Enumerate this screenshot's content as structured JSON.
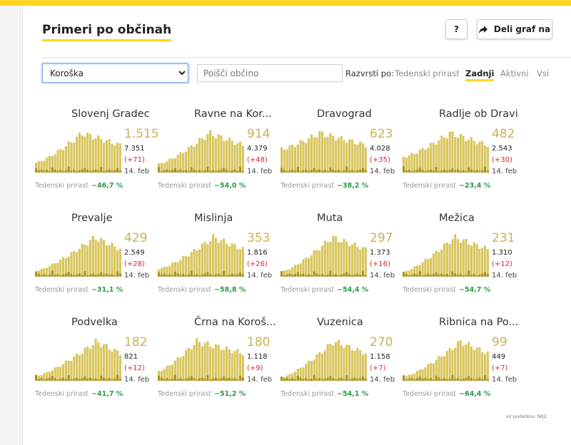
{
  "title": "Primeri po občinah",
  "help_label": "?",
  "share_label": "Deli graf na",
  "region_selected": "Koroška",
  "search_placeholder": "Poišči občino",
  "sort_label": "Razvrsti po:",
  "sort_options": [
    {
      "label": "Tedenski prirast",
      "active": false
    },
    {
      "label": "Zadnji",
      "active": true
    },
    {
      "label": "Aktivni",
      "active": false
    },
    {
      "label": "Vsi",
      "active": false
    }
  ],
  "trend_label": "Tedenski prirast",
  "date": "14. feb",
  "colors": {
    "bar": "#d8c55c",
    "bar_low": "#a89020",
    "accent": "#ffd423",
    "increase": "#d23",
    "trend": "#2a9b4a"
  },
  "municipalities": [
    {
      "name": "Slovenj Gradec",
      "active": "1.515",
      "total": "7.351",
      "delta": "(+71)",
      "weekly": "−46,7 %"
    },
    {
      "name": "Ravne na Kor...",
      "active": "914",
      "total": "4.379",
      "delta": "(+48)",
      "weekly": "−54,0 %"
    },
    {
      "name": "Dravograd",
      "active": "623",
      "total": "4.028",
      "delta": "(+35)",
      "weekly": "−38,2 %"
    },
    {
      "name": "Radlje ob Dravi",
      "active": "482",
      "total": "2.543",
      "delta": "(+30)",
      "weekly": "−23,4 %"
    },
    {
      "name": "Prevalje",
      "active": "429",
      "total": "2.549",
      "delta": "(+28)",
      "weekly": "−31,1 %"
    },
    {
      "name": "Mislinja",
      "active": "353",
      "total": "1.816",
      "delta": "(+26)",
      "weekly": "−58,8 %"
    },
    {
      "name": "Muta",
      "active": "297",
      "total": "1.373",
      "delta": "(+16)",
      "weekly": "−54,4 %"
    },
    {
      "name": "Mežica",
      "active": "231",
      "total": "1.310",
      "delta": "(+12)",
      "weekly": "−54,7 %"
    },
    {
      "name": "Podvelka",
      "active": "182",
      "total": "821",
      "delta": "(+12)",
      "weekly": "−41,7 %"
    },
    {
      "name": "Črna na Koroš...",
      "active": "180",
      "total": "1.118",
      "delta": "(+9)",
      "weekly": "−51,2 %"
    },
    {
      "name": "Vuzenica",
      "active": "270",
      "total": "1.158",
      "delta": "(+7)",
      "weekly": "−54,1 %"
    },
    {
      "name": "Ribnica na Po...",
      "active": "99",
      "total": "449",
      "delta": "(+7)",
      "weekly": "−64,4 %"
    }
  ],
  "source": "vir podatkov: NIJZ"
}
